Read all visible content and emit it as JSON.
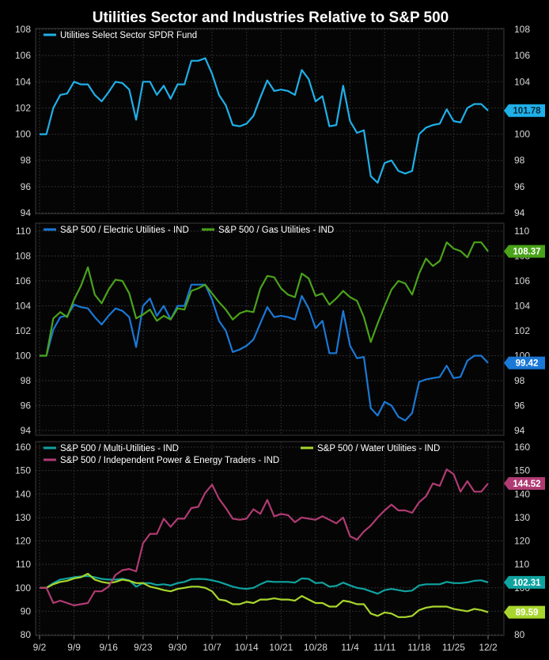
{
  "chart_data": [
    {
      "type": "line",
      "title": "Utilities Sector and Industries Relative to S&P 500",
      "xticks": [
        "9/2",
        "9/9",
        "9/16",
        "9/23",
        "9/30",
        "10/7",
        "10/14",
        "10/21",
        "10/28",
        "11/4",
        "11/11",
        "11/18",
        "11/25",
        "12/2"
      ],
      "ylim": [
        94,
        108
      ],
      "yticks": [
        94,
        96,
        98,
        100,
        102,
        104,
        106,
        108
      ],
      "grid": true,
      "legend_position": "top-left",
      "series": [
        {
          "name": "Utilities Select Sector SPDR Fund",
          "color": "#1fb0e8",
          "last_label": "101.78",
          "values": [
            100,
            100,
            102,
            103,
            103.1,
            104,
            103.8,
            103.8,
            103.0,
            102.5,
            103.2,
            104.0,
            103.9,
            103.4,
            101.1,
            104.0,
            104.0,
            103.0,
            103.7,
            102.7,
            103.8,
            103.8,
            105.6,
            105.6,
            105.8,
            104.6,
            103.0,
            102.2,
            100.7,
            100.6,
            100.8,
            101.4,
            102.8,
            104.1,
            103.3,
            103.4,
            103.3,
            103.0,
            104.9,
            104.2,
            102.5,
            102.9,
            100.6,
            100.7,
            103.7,
            101.0,
            100.1,
            100.3,
            96.8,
            96.3,
            97.8,
            98.0,
            97.2,
            97.0,
            97.2,
            100.0,
            100.5,
            100.7,
            100.8,
            101.9,
            101.0,
            100.9,
            102.0,
            102.3,
            102.3,
            101.8
          ]
        }
      ]
    },
    {
      "type": "line",
      "ylim": [
        94,
        110
      ],
      "yticks": [
        94,
        96,
        98,
        100,
        102,
        104,
        106,
        108,
        110
      ],
      "grid": true,
      "legend_position": "top-left",
      "series": [
        {
          "name": "S&P 500 / Electric Utilities - IND",
          "color": "#1a78d6",
          "last_label": "99.42",
          "values": [
            100,
            100,
            102.1,
            103.1,
            103.2,
            104.1,
            103.9,
            103.8,
            103.1,
            102.5,
            103.2,
            103.8,
            103.6,
            103.1,
            100.7,
            104.0,
            104.6,
            103.2,
            104.0,
            102.9,
            104.0,
            104.0,
            105.7,
            105.7,
            105.7,
            104.5,
            102.8,
            102.0,
            100.3,
            100.5,
            100.8,
            101.3,
            102.6,
            103.9,
            103.1,
            103.2,
            103.1,
            102.9,
            104.8,
            103.8,
            102.2,
            102.8,
            100.2,
            100.2,
            103.6,
            100.8,
            99.8,
            99.9,
            95.8,
            95.2,
            96.3,
            96.0,
            95.1,
            94.8,
            95.4,
            97.9,
            98.1,
            98.2,
            98.3,
            99.2,
            98.2,
            98.3,
            99.6,
            100.0,
            100.0,
            99.42
          ]
        },
        {
          "name": "S&P 500 / Gas Utilities - IND",
          "color": "#4aa31a",
          "last_label": "108.37",
          "values": [
            100,
            100,
            103.0,
            103.5,
            103.1,
            104.5,
            105.6,
            107.1,
            104.9,
            104.2,
            105.3,
            106.1,
            106.0,
            105.0,
            103.0,
            103.3,
            103.7,
            102.8,
            103.2,
            102.9,
            103.8,
            103.7,
            105.2,
            105.4,
            105.7,
            105.0,
            104.3,
            103.7,
            102.9,
            103.4,
            103.6,
            103.5,
            105.4,
            106.4,
            106.3,
            105.4,
            104.9,
            104.7,
            106.6,
            106.2,
            104.8,
            105.0,
            104.1,
            104.6,
            105.2,
            104.7,
            104.4,
            103.1,
            101.1,
            102.6,
            104.0,
            105.3,
            106.0,
            105.8,
            104.9,
            106.6,
            107.8,
            107.2,
            107.6,
            109.1,
            108.6,
            108.4,
            107.9,
            109.1,
            109.1,
            108.37
          ]
        }
      ]
    },
    {
      "type": "line",
      "ylim": [
        80,
        160
      ],
      "yticks": [
        80,
        90,
        100,
        110,
        120,
        130,
        140,
        150,
        160
      ],
      "grid": true,
      "legend_position": "top-left",
      "series": [
        {
          "name": "S&P 500 / Multi-Utilities - IND",
          "color": "#0fa3a0",
          "last_label": "102.31",
          "values": [
            100,
            100,
            102.0,
            103.5,
            104.0,
            104.5,
            104.8,
            105.0,
            104.5,
            103.8,
            103.5,
            103.5,
            103.8,
            103.2,
            100.5,
            102.0,
            102.0,
            101.2,
            101.5,
            101.0,
            102.0,
            102.5,
            103.7,
            103.8,
            103.7,
            103.2,
            102.5,
            101.5,
            100.5,
            99.8,
            99.5,
            100.0,
            101.5,
            102.8,
            102.5,
            102.5,
            102.5,
            102.2,
            104.0,
            103.8,
            102.0,
            102.2,
            100.5,
            100.8,
            102.2,
            101.0,
            100.0,
            99.5,
            98.5,
            97.5,
            99.0,
            99.5,
            99.0,
            98.5,
            98.8,
            101.0,
            101.5,
            101.5,
            101.5,
            102.5,
            102.0,
            102.0,
            102.3,
            103.0,
            103.2,
            102.31
          ]
        },
        {
          "name": "S&P 500 / Water Utilities - IND",
          "color": "#a8d62e",
          "last_label": "89.59",
          "values": [
            100,
            100,
            101.5,
            102.5,
            103.0,
            104.0,
            104.5,
            106.0,
            103.5,
            102.5,
            102.0,
            102.5,
            103.5,
            103.0,
            102.0,
            102.0,
            100.5,
            99.8,
            99.0,
            98.5,
            99.5,
            100.0,
            100.5,
            100.5,
            100.0,
            98.5,
            95.0,
            94.5,
            93.0,
            93.0,
            94.0,
            93.5,
            95.0,
            95.0,
            95.5,
            95.0,
            95.0,
            94.5,
            96.5,
            95.0,
            93.5,
            93.5,
            92.0,
            92.0,
            94.5,
            94.0,
            93.0,
            93.0,
            89.0,
            88.0,
            89.5,
            89.0,
            87.5,
            87.5,
            88.0,
            90.5,
            91.5,
            92.0,
            92.0,
            92.0,
            91.0,
            90.5,
            90.0,
            91.0,
            90.5,
            89.59
          ]
        },
        {
          "name": "S&P 500 / Independent Power & Energy Traders - IND",
          "color": "#b03b73",
          "last_label": "144.52",
          "values": [
            100,
            100,
            93.5,
            94.5,
            93.5,
            92.5,
            93.0,
            93.5,
            98.5,
            98.5,
            100.5,
            105.5,
            107.5,
            108.0,
            107.0,
            119.0,
            123.0,
            123.0,
            129.5,
            126.0,
            129.5,
            129.5,
            134.0,
            134.5,
            140.5,
            144.0,
            138.0,
            134.0,
            129.5,
            129.0,
            129.5,
            133.5,
            131.5,
            137.5,
            130.5,
            131.5,
            131.0,
            128.0,
            130.0,
            129.5,
            129.0,
            130.5,
            129.0,
            127.5,
            130.0,
            122.0,
            120.5,
            124.0,
            126.5,
            130.0,
            133.0,
            135.5,
            133.0,
            133.0,
            132.0,
            136.5,
            139.0,
            144.5,
            143.5,
            150.5,
            148.5,
            141.0,
            145.5,
            141.0,
            141.0,
            144.52
          ]
        }
      ]
    }
  ]
}
